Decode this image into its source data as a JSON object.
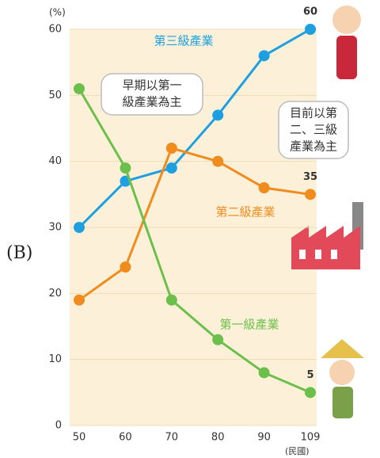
{
  "chart_data": {
    "type": "line",
    "panel_label": "(B)",
    "y_label": "(%)",
    "x_label": "(民國)",
    "categories": [
      "50",
      "60",
      "70",
      "80",
      "90",
      "109"
    ],
    "ylim": [
      0,
      60
    ],
    "yticks": [
      0,
      10,
      20,
      30,
      40,
      50,
      60
    ],
    "grid": true,
    "series": [
      {
        "name": "第三級產業",
        "color": "#1ea0e0",
        "values": [
          30,
          37,
          39,
          47,
          56,
          60
        ]
      },
      {
        "name": "第二級產業",
        "color": "#f08c1e",
        "values": [
          19,
          24,
          42,
          40,
          36,
          35
        ]
      },
      {
        "name": "第一級產業",
        "color": "#6cbf4a",
        "values": [
          51,
          39,
          19,
          13,
          8,
          5
        ]
      }
    ],
    "annotations": [
      {
        "lines": [
          "早期以第一",
          "級產業為主"
        ]
      },
      {
        "lines": [
          "目前以第",
          "二、三級",
          "產業為主"
        ]
      }
    ]
  }
}
